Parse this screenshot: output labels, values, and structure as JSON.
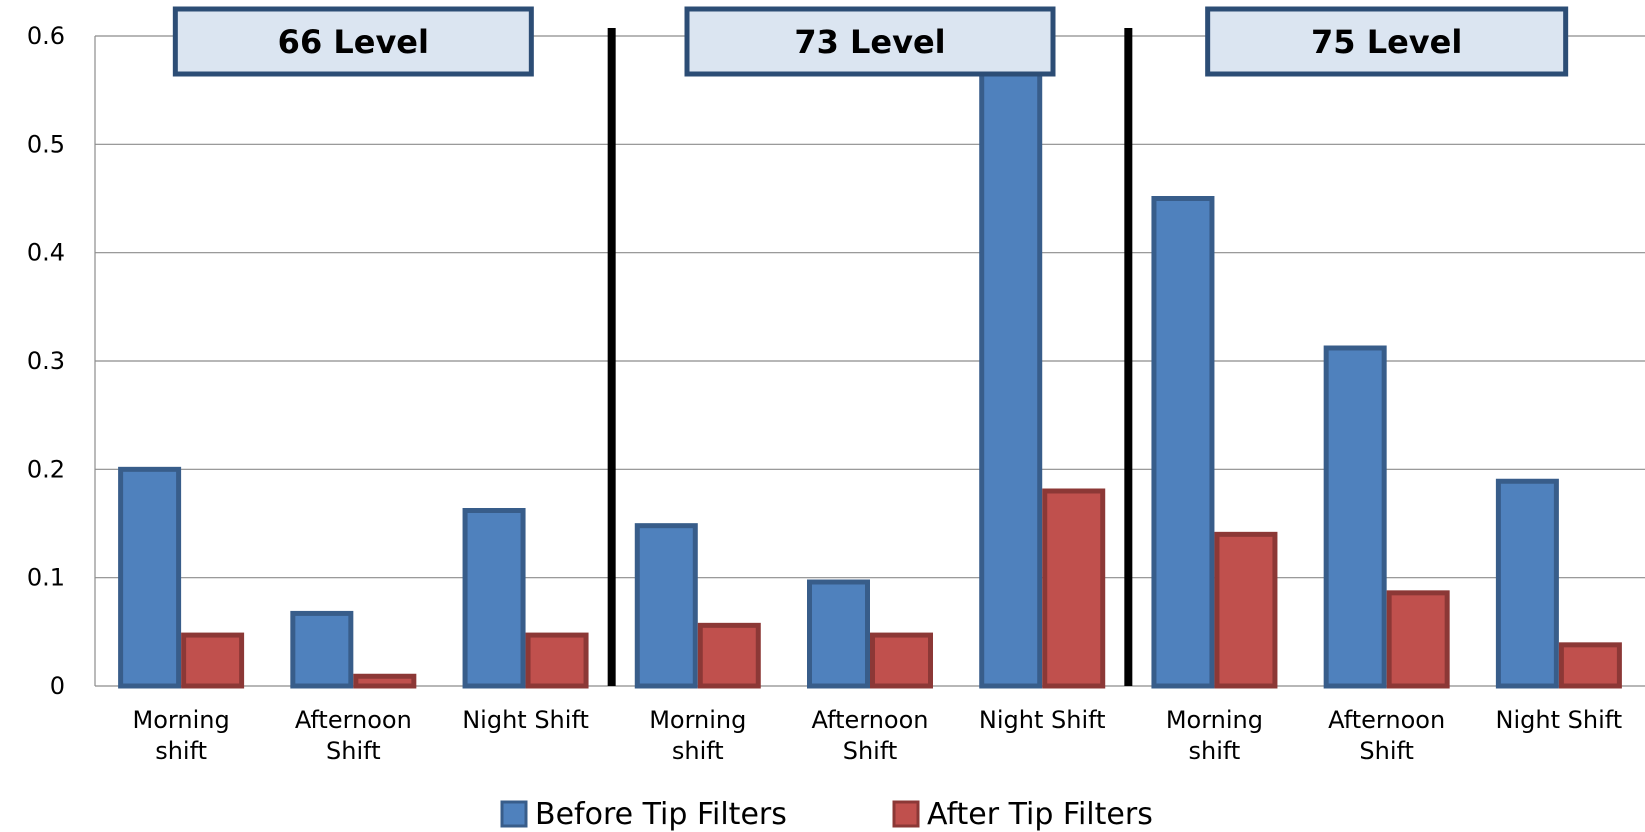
{
  "chart_data": {
    "type": "bar",
    "ylim": [
      0,
      0.6
    ],
    "yticks": [
      "0",
      "0.1",
      "0.2",
      "0.3",
      "0.4",
      "0.5",
      "0.6"
    ],
    "grid": true,
    "legend_position": "bottom",
    "groups": [
      {
        "label": "66 Level",
        "categories": [
          [
            "Morning",
            "shift"
          ],
          [
            "Afternoon",
            "Shift"
          ],
          [
            "Night Shift"
          ]
        ]
      },
      {
        "label": "73 Level",
        "categories": [
          [
            "Morning",
            "shift"
          ],
          [
            "Afternoon",
            "Shift"
          ],
          [
            "Night Shift"
          ]
        ]
      },
      {
        "label": "75 Level",
        "categories": [
          [
            "Morning",
            "shift"
          ],
          [
            "Afternoon",
            "Shift"
          ],
          [
            "Night Shift"
          ]
        ]
      }
    ],
    "series": [
      {
        "name": "Before Tip Filters",
        "color": "#4F81BD",
        "border": "#385D8A",
        "values": [
          0.2,
          0.067,
          0.162,
          0.148,
          0.096,
          0.6,
          0.45,
          0.312,
          0.189
        ]
      },
      {
        "name": "After Tip Filters",
        "color": "#C0504D",
        "border": "#8C3836",
        "values": [
          0.047,
          0.009,
          0.047,
          0.056,
          0.047,
          0.18,
          0.14,
          0.086,
          0.038
        ]
      }
    ]
  }
}
